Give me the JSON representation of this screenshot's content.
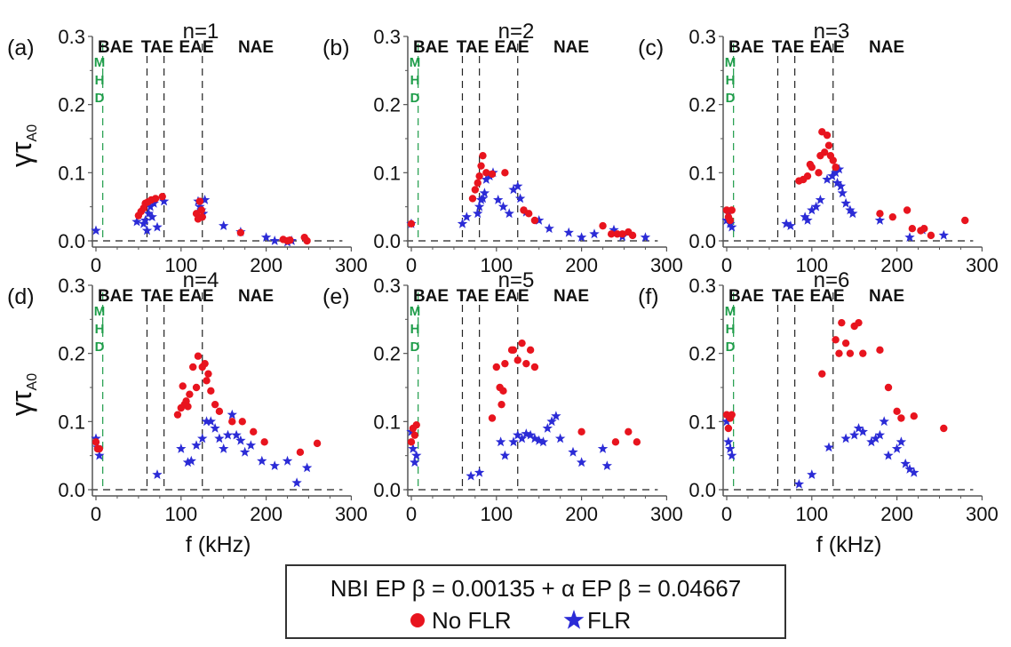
{
  "colors": {
    "no_flr": "#e8141e",
    "flr": "#2b2bd6",
    "mhd": "#1f9d4a",
    "axis": "#555555",
    "dashed": "#222222"
  },
  "legend": {
    "title": "NBI EP β = 0.00135 + α EP β = 0.04667",
    "no_flr_label": "No FLR",
    "flr_label": "FLR",
    "no_flr_icon": "red-circle-marker",
    "flr_icon": "blue-star-marker"
  },
  "chart_data": [
    {
      "type": "scatter",
      "panel": "(a)",
      "title": "n=1",
      "xlabel": "",
      "ylabel": "γτA0",
      "xlim": [
        0,
        300
      ],
      "ylim": [
        0,
        0.3
      ],
      "xticks": [
        "0",
        "100",
        "200",
        "300"
      ],
      "yticks": [
        "0.0",
        "0.1",
        "0.2",
        "0.3"
      ],
      "regions": [
        "BAE",
        "TAE",
        "EAE",
        "NAE"
      ],
      "mhd_label": [
        "M",
        "H",
        "D"
      ],
      "mhd_line_f": 8,
      "dashed_lines_f": [
        60,
        80,
        125
      ],
      "series": [
        {
          "name": "No FLR",
          "x": [
            50,
            53,
            56,
            58,
            61,
            65,
            70,
            78,
            118,
            120,
            122,
            124,
            125,
            170,
            220,
            225,
            228,
            245,
            248
          ],
          "y": [
            0.037,
            0.043,
            0.048,
            0.055,
            0.057,
            0.06,
            0.062,
            0.065,
            0.04,
            0.032,
            0.058,
            0.045,
            0.035,
            0.012,
            0.002,
            0.0,
            0.001,
            0.005,
            0.0
          ]
        },
        {
          "name": "FLR",
          "x": [
            0,
            48,
            56,
            58,
            60,
            62,
            64,
            66,
            68,
            72,
            80,
            120,
            122,
            124,
            126,
            128,
            150,
            170,
            200,
            210,
            225,
            230
          ],
          "y": [
            0.015,
            0.028,
            0.025,
            0.03,
            0.015,
            0.04,
            0.05,
            0.035,
            0.055,
            0.02,
            0.058,
            0.058,
            0.05,
            0.045,
            0.04,
            0.06,
            0.022,
            0.013,
            0.005,
            0.0,
            -0.002,
            0.0
          ]
        }
      ]
    },
    {
      "type": "scatter",
      "panel": "(b)",
      "title": "n=2",
      "xlabel": "",
      "ylabel": "",
      "xlim": [
        0,
        300
      ],
      "ylim": [
        0,
        0.3
      ],
      "xticks": [
        "0",
        "100",
        "200",
        "300"
      ],
      "yticks": [
        "0.0",
        "0.1",
        "0.2",
        "0.3"
      ],
      "regions": [
        "BAE",
        "TAE",
        "EAE",
        "NAE"
      ],
      "mhd_label": [
        "M",
        "H",
        "D"
      ],
      "mhd_line_f": 8,
      "dashed_lines_f": [
        60,
        80,
        125
      ],
      "series": [
        {
          "name": "No FLR",
          "x": [
            0,
            72,
            75,
            78,
            80,
            82,
            84,
            88,
            95,
            110,
            132,
            138,
            145,
            225,
            235,
            242,
            248,
            255,
            260
          ],
          "y": [
            0.025,
            0.062,
            0.075,
            0.085,
            0.095,
            0.11,
            0.125,
            0.1,
            0.098,
            0.1,
            0.045,
            0.04,
            0.03,
            0.022,
            0.01,
            0.01,
            0.01,
            0.013,
            0.008
          ]
        },
        {
          "name": "FLR",
          "x": [
            0,
            60,
            65,
            78,
            80,
            82,
            84,
            86,
            88,
            92,
            96,
            102,
            108,
            115,
            120,
            125,
            128,
            135,
            150,
            162,
            185,
            200,
            215,
            238,
            248,
            275
          ],
          "y": [
            0.025,
            0.025,
            0.035,
            0.04,
            0.05,
            0.06,
            0.062,
            0.07,
            0.09,
            0.095,
            0.1,
            0.06,
            0.05,
            0.04,
            0.075,
            0.08,
            0.062,
            0.042,
            0.03,
            0.018,
            0.012,
            0.005,
            0.01,
            0.016,
            0.006,
            0.005
          ]
        }
      ]
    },
    {
      "type": "scatter",
      "panel": "(c)",
      "title": "n=3",
      "xlabel": "",
      "ylabel": "",
      "xlim": [
        0,
        300
      ],
      "ylim": [
        0,
        0.3
      ],
      "xticks": [
        "0",
        "100",
        "200",
        "300"
      ],
      "yticks": [
        "0.0",
        "0.1",
        "0.2",
        "0.3"
      ],
      "regions": [
        "BAE",
        "TAE",
        "EAE",
        "NAE"
      ],
      "mhd_label": [
        "M",
        "H",
        "D"
      ],
      "mhd_line_f": 8,
      "dashed_lines_f": [
        60,
        80,
        125
      ],
      "series": [
        {
          "name": "No FLR",
          "x": [
            0,
            2,
            4,
            6,
            85,
            90,
            95,
            98,
            100,
            108,
            110,
            112,
            115,
            118,
            120,
            122,
            125,
            128,
            180,
            195,
            212,
            218,
            228,
            232,
            240,
            280
          ],
          "y": [
            0.045,
            0.035,
            0.03,
            0.045,
            0.088,
            0.09,
            0.095,
            0.112,
            0.108,
            0.1,
            0.125,
            0.16,
            0.13,
            0.155,
            0.14,
            0.125,
            0.118,
            0.108,
            0.04,
            0.035,
            0.045,
            0.018,
            0.015,
            0.018,
            0.008,
            0.03
          ]
        },
        {
          "name": "FLR",
          "x": [
            0,
            2,
            4,
            6,
            70,
            75,
            92,
            95,
            100,
            105,
            110,
            118,
            124,
            128,
            130,
            132,
            134,
            136,
            140,
            145,
            148,
            180,
            215,
            230,
            255
          ],
          "y": [
            0.03,
            0.04,
            0.025,
            0.02,
            0.025,
            0.022,
            0.035,
            0.03,
            0.045,
            0.05,
            0.06,
            0.09,
            0.095,
            0.1,
            0.085,
            0.105,
            0.08,
            0.07,
            0.055,
            0.045,
            0.04,
            0.03,
            0.005,
            0.016,
            0.008
          ]
        }
      ]
    },
    {
      "type": "scatter",
      "panel": "(d)",
      "title": "n=4",
      "xlabel": "f (kHz)",
      "ylabel": "γτA0",
      "xlim": [
        0,
        300
      ],
      "ylim": [
        0,
        0.3
      ],
      "xticks": [
        "0",
        "100",
        "200",
        "300"
      ],
      "yticks": [
        "0.0",
        "0.1",
        "0.2",
        "0.3"
      ],
      "regions": [
        "BAE",
        "TAE",
        "EAE",
        "NAE"
      ],
      "mhd_label": [
        "M",
        "H",
        "D"
      ],
      "mhd_line_f": 8,
      "dashed_lines_f": [
        60,
        80,
        125
      ],
      "series": [
        {
          "name": "No FLR",
          "x": [
            0,
            2,
            4,
            96,
            100,
            102,
            104,
            106,
            108,
            110,
            114,
            118,
            120,
            125,
            128,
            130,
            132,
            135,
            140,
            145,
            160,
            172,
            185,
            198,
            240,
            260
          ],
          "y": [
            0.07,
            0.06,
            0.06,
            0.11,
            0.12,
            0.152,
            0.125,
            0.13,
            0.122,
            0.14,
            0.18,
            0.15,
            0.196,
            0.18,
            0.185,
            0.16,
            0.17,
            0.145,
            0.125,
            0.115,
            0.1,
            0.1,
            0.085,
            0.07,
            0.055,
            0.068
          ]
        },
        {
          "name": "FLR",
          "x": [
            0,
            2,
            4,
            72,
            100,
            108,
            112,
            118,
            125,
            130,
            135,
            140,
            145,
            150,
            155,
            160,
            165,
            170,
            175,
            182,
            195,
            210,
            225,
            236,
            248
          ],
          "y": [
            0.075,
            0.062,
            0.05,
            0.022,
            0.06,
            0.04,
            0.042,
            0.065,
            0.075,
            0.1,
            0.1,
            0.09,
            0.075,
            0.06,
            0.08,
            0.11,
            0.08,
            0.072,
            0.055,
            0.065,
            0.042,
            0.035,
            0.042,
            0.01,
            0.032
          ]
        }
      ]
    },
    {
      "type": "scatter",
      "panel": "(e)",
      "title": "n=5",
      "xlabel": "",
      "ylabel": "",
      "xlim": [
        0,
        300
      ],
      "ylim": [
        0,
        0.3
      ],
      "xticks": [
        "0",
        "100",
        "200",
        "300"
      ],
      "yticks": [
        "0.0",
        "0.1",
        "0.2",
        "0.3"
      ],
      "regions": [
        "BAE",
        "TAE",
        "EAE",
        "NAE"
      ],
      "mhd_label": [
        "M",
        "H",
        "D"
      ],
      "mhd_line_f": 8,
      "dashed_lines_f": [
        60,
        80,
        125
      ],
      "series": [
        {
          "name": "No FLR",
          "x": [
            0,
            2,
            4,
            6,
            95,
            100,
            104,
            106,
            108,
            110,
            118,
            120,
            125,
            130,
            135,
            140,
            145,
            200,
            240,
            255,
            265
          ],
          "y": [
            0.07,
            0.09,
            0.08,
            0.095,
            0.105,
            0.18,
            0.15,
            0.125,
            0.145,
            0.185,
            0.205,
            0.205,
            0.19,
            0.215,
            0.185,
            0.205,
            0.18,
            0.085,
            0.07,
            0.085,
            0.07
          ]
        },
        {
          "name": "FLR",
          "x": [
            0,
            2,
            4,
            6,
            70,
            80,
            105,
            110,
            120,
            125,
            130,
            135,
            140,
            145,
            150,
            155,
            160,
            165,
            170,
            175,
            190,
            200,
            225,
            230
          ],
          "y": [
            0.085,
            0.06,
            0.04,
            0.05,
            0.02,
            0.025,
            0.07,
            0.05,
            0.07,
            0.08,
            0.075,
            0.082,
            0.08,
            0.075,
            0.072,
            0.07,
            0.09,
            0.1,
            0.108,
            0.075,
            0.055,
            0.04,
            0.06,
            0.035
          ]
        }
      ]
    },
    {
      "type": "scatter",
      "panel": "(f)",
      "title": "n=6",
      "xlabel": "f (kHz)",
      "ylabel": "",
      "xlim": [
        0,
        300
      ],
      "ylim": [
        0,
        0.3
      ],
      "xticks": [
        "0",
        "100",
        "200",
        "300"
      ],
      "yticks": [
        "0.0",
        "0.1",
        "0.2",
        "0.3"
      ],
      "regions": [
        "BAE",
        "TAE",
        "EAE",
        "NAE"
      ],
      "mhd_label": [
        "M",
        "H",
        "D"
      ],
      "mhd_line_f": 8,
      "dashed_lines_f": [
        60,
        80,
        125
      ],
      "series": [
        {
          "name": "No FLR",
          "x": [
            0,
            2,
            4,
            6,
            112,
            128,
            132,
            135,
            140,
            145,
            150,
            155,
            160,
            180,
            190,
            200,
            205,
            220,
            255
          ],
          "y": [
            0.11,
            0.09,
            0.105,
            0.11,
            0.17,
            0.22,
            0.2,
            0.245,
            0.215,
            0.2,
            0.24,
            0.245,
            0.2,
            0.205,
            0.15,
            0.115,
            0.105,
            0.108,
            0.09
          ]
        },
        {
          "name": "FLR",
          "x": [
            0,
            2,
            4,
            6,
            85,
            100,
            120,
            140,
            150,
            155,
            160,
            170,
            175,
            180,
            185,
            190,
            200,
            205,
            210,
            215,
            220
          ],
          "y": [
            0.1,
            0.07,
            0.06,
            0.05,
            0.008,
            0.022,
            0.062,
            0.075,
            0.08,
            0.09,
            0.085,
            0.07,
            0.075,
            0.08,
            0.1,
            0.05,
            0.06,
            0.07,
            0.038,
            0.03,
            0.025
          ]
        }
      ]
    }
  ]
}
